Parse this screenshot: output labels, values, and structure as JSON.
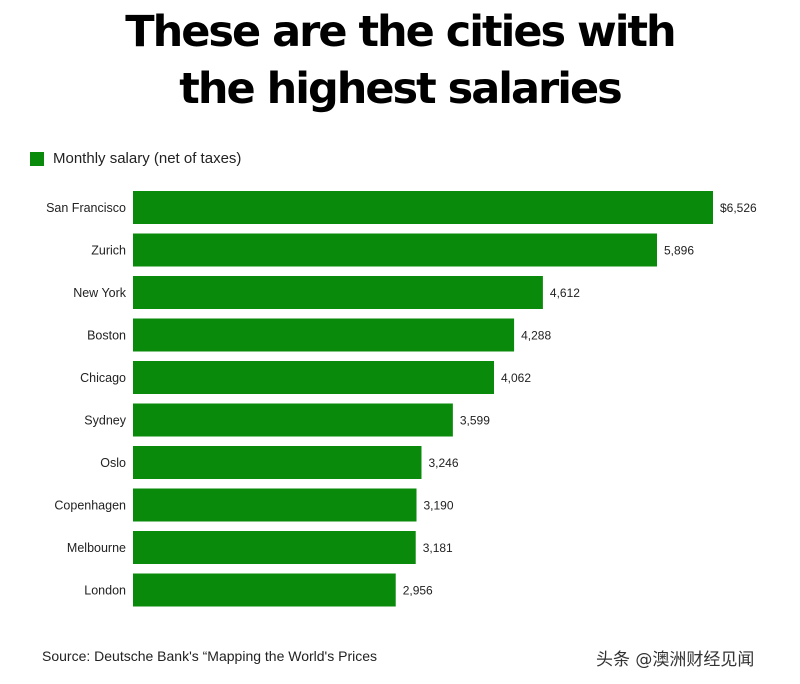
{
  "title_line1": "These are the cities with",
  "title_line2": "the highest salaries",
  "legend_label": "Monthly salary (net of taxes)",
  "source": "Source: Deutsche Bank's “Mapping the World's Prices",
  "watermark": "头条 @澳洲财经见闻",
  "colors": {
    "bar": "#0a8a0a"
  },
  "chart_data": {
    "type": "bar",
    "orientation": "horizontal",
    "categories": [
      "San Francisco",
      "Zurich",
      "New York",
      "Boston",
      "Chicago",
      "Sydney",
      "Oslo",
      "Copenhagen",
      "Melbourne",
      "London"
    ],
    "series": [
      {
        "name": "Monthly salary (net of taxes)",
        "values": [
          6526,
          5896,
          4612,
          4288,
          4062,
          3599,
          3246,
          3190,
          3181,
          2956
        ],
        "labels": [
          "$6,526",
          "5,896",
          "4,612",
          "4,288",
          "4,062",
          "3,599",
          "3,246",
          "3,190",
          "3,181",
          "2,956"
        ]
      }
    ],
    "title": "These are the cities with the highest salaries",
    "xlabel": "",
    "ylabel": "",
    "xlim": [
      0,
      6526
    ],
    "grid": false,
    "legend": "top-left"
  }
}
